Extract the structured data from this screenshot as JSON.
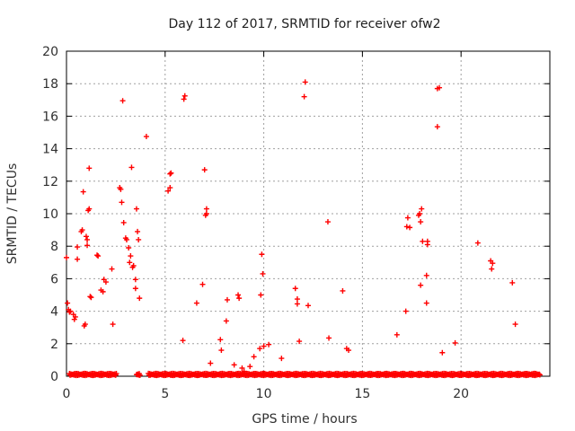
{
  "chart_data": {
    "type": "scatter",
    "title": "Day 112 of 2017, SRMTID for receiver ofw2",
    "xlabel": "GPS time / hours",
    "ylabel": "SRMTID / TECUs",
    "xlim": [
      0,
      24.5
    ],
    "ylim": [
      0,
      20
    ],
    "xticks": [
      0,
      5,
      10,
      15,
      20
    ],
    "yticks": [
      0,
      2,
      4,
      6,
      8,
      10,
      12,
      14,
      16,
      18,
      20
    ],
    "grid": true,
    "marker": "plus",
    "color": "#ff0000",
    "series": [
      {
        "points": [
          [
            0.0,
            7.3
          ],
          [
            0.05,
            4.5
          ],
          [
            0.1,
            4.1
          ],
          [
            0.15,
            3.95
          ],
          [
            0.2,
            4.0
          ],
          [
            0.35,
            3.8
          ],
          [
            0.4,
            3.5
          ],
          [
            0.45,
            3.65
          ],
          [
            0.55,
            7.95
          ],
          [
            0.55,
            7.2
          ],
          [
            0.75,
            8.9
          ],
          [
            0.8,
            9.0
          ],
          [
            0.85,
            11.35
          ],
          [
            0.9,
            3.1
          ],
          [
            0.95,
            3.2
          ],
          [
            1.0,
            8.6
          ],
          [
            1.05,
            8.4
          ],
          [
            1.05,
            8.05
          ],
          [
            1.1,
            10.2
          ],
          [
            1.15,
            10.3
          ],
          [
            1.15,
            12.8
          ],
          [
            1.2,
            4.9
          ],
          [
            1.25,
            4.85
          ],
          [
            1.55,
            7.45
          ],
          [
            1.6,
            7.4
          ],
          [
            1.75,
            5.3
          ],
          [
            1.85,
            5.2
          ],
          [
            1.9,
            5.95
          ],
          [
            2.0,
            5.8
          ],
          [
            2.3,
            6.6
          ],
          [
            2.35,
            3.2
          ],
          [
            2.7,
            11.6
          ],
          [
            2.75,
            11.5
          ],
          [
            2.8,
            10.7
          ],
          [
            2.85,
            16.95
          ],
          [
            2.9,
            9.45
          ],
          [
            3.0,
            8.5
          ],
          [
            3.05,
            8.4
          ],
          [
            3.15,
            7.9
          ],
          [
            3.2,
            7.0
          ],
          [
            3.25,
            7.4
          ],
          [
            3.3,
            12.85
          ],
          [
            3.35,
            6.7
          ],
          [
            3.4,
            6.8
          ],
          [
            3.5,
            5.95
          ],
          [
            3.5,
            5.4
          ],
          [
            3.55,
            10.3
          ],
          [
            3.6,
            8.9
          ],
          [
            3.65,
            8.4
          ],
          [
            3.7,
            4.8
          ],
          [
            4.05,
            14.75
          ],
          [
            5.15,
            11.4
          ],
          [
            5.25,
            11.6
          ],
          [
            5.25,
            12.45
          ],
          [
            5.3,
            12.5
          ],
          [
            5.9,
            2.2
          ],
          [
            5.95,
            17.05
          ],
          [
            6.0,
            17.25
          ],
          [
            6.6,
            4.5
          ],
          [
            6.9,
            5.65
          ],
          [
            7.0,
            12.7
          ],
          [
            7.05,
            9.9
          ],
          [
            7.1,
            10.0
          ],
          [
            7.1,
            10.3
          ],
          [
            7.3,
            0.8
          ],
          [
            7.8,
            2.25
          ],
          [
            7.85,
            1.6
          ],
          [
            8.1,
            3.4
          ],
          [
            8.15,
            4.7
          ],
          [
            8.5,
            0.7
          ],
          [
            8.7,
            5.0
          ],
          [
            8.75,
            4.8
          ],
          [
            8.9,
            0.5
          ],
          [
            9.0,
            0.3
          ],
          [
            9.3,
            0.6
          ],
          [
            9.5,
            1.2
          ],
          [
            9.8,
            1.7
          ],
          [
            9.85,
            5.0
          ],
          [
            9.9,
            7.5
          ],
          [
            9.95,
            6.3
          ],
          [
            10.0,
            1.85
          ],
          [
            10.25,
            1.95
          ],
          [
            10.9,
            1.1
          ],
          [
            11.6,
            5.4
          ],
          [
            11.7,
            4.75
          ],
          [
            11.7,
            4.45
          ],
          [
            11.8,
            2.15
          ],
          [
            12.05,
            17.2
          ],
          [
            12.1,
            18.1
          ],
          [
            12.25,
            4.35
          ],
          [
            13.25,
            9.5
          ],
          [
            13.3,
            2.35
          ],
          [
            14.0,
            5.25
          ],
          [
            14.2,
            1.7
          ],
          [
            14.3,
            1.6
          ],
          [
            16.75,
            2.55
          ],
          [
            17.2,
            4.0
          ],
          [
            17.25,
            9.2
          ],
          [
            17.3,
            9.75
          ],
          [
            17.4,
            9.15
          ],
          [
            17.85,
            9.9
          ],
          [
            17.9,
            10.0
          ],
          [
            17.95,
            9.5
          ],
          [
            17.95,
            5.6
          ],
          [
            18.0,
            10.3
          ],
          [
            18.05,
            8.3
          ],
          [
            18.25,
            6.2
          ],
          [
            18.25,
            4.5
          ],
          [
            18.3,
            8.1
          ],
          [
            18.3,
            8.3
          ],
          [
            18.8,
            15.35
          ],
          [
            18.8,
            17.7
          ],
          [
            18.9,
            17.75
          ],
          [
            19.05,
            1.45
          ],
          [
            19.7,
            2.05
          ],
          [
            20.85,
            8.2
          ],
          [
            21.5,
            7.1
          ],
          [
            21.55,
            6.6
          ],
          [
            21.6,
            6.95
          ],
          [
            22.6,
            5.75
          ],
          [
            22.75,
            3.2
          ]
        ],
        "baseline_hours": [
          [
            0.15,
            2.55
          ],
          [
            3.55,
            3.75
          ],
          [
            4.15,
            24.0
          ]
        ],
        "baseline_value": 0.05
      }
    ]
  }
}
